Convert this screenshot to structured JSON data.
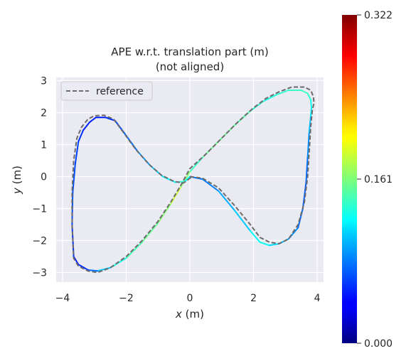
{
  "chart_data": {
    "type": "line",
    "title": "APE w.r.t. translation part (m)",
    "subtitle": "(not aligned)",
    "xlabel_var": "x",
    "xlabel_unit": " (m)",
    "ylabel_var": "y",
    "ylabel_unit": " (m)",
    "xlim": [
      -4.2,
      4.2
    ],
    "ylim": [
      -3.3,
      3.1
    ],
    "xticks": [
      -4,
      -2,
      0,
      2,
      4
    ],
    "xtick_labels": [
      "−4",
      "−2",
      "0",
      "2",
      "4"
    ],
    "yticks": [
      -3,
      -2,
      -1,
      0,
      1,
      2,
      3
    ],
    "ytick_labels": [
      "−3",
      "−2",
      "−1",
      "0",
      "1",
      "2",
      "3"
    ],
    "grid": true,
    "legend": {
      "placement": "top-left",
      "entries": [
        "reference"
      ]
    },
    "colorbar": {
      "colormap": "jet",
      "min": 0.0,
      "max": 0.322,
      "tick_labels": [
        "0.000",
        "0.161",
        "0.322"
      ],
      "tick_values": [
        0.0,
        0.161,
        0.322
      ]
    },
    "series": [
      {
        "name": "reference",
        "style": "dashed",
        "color": "#6b6b6b",
        "x": [
          0,
          0.4,
          0.9,
          1.4,
          1.9,
          2.2,
          2.5,
          2.8,
          3.1,
          3.4,
          3.6,
          3.7,
          3.75,
          3.8,
          3.85,
          3.9,
          3.88,
          3.8,
          3.6,
          3.2,
          2.8,
          2.4,
          2.0,
          1.5,
          1.0,
          0.5,
          0.0,
          -0.3,
          -0.6,
          -1.0,
          -1.5,
          -2.0,
          -2.5,
          -2.9,
          -3.2,
          -3.5,
          -3.65,
          -3.7,
          -3.7,
          -3.65,
          -3.55,
          -3.4,
          -3.2,
          -3.0,
          -2.7,
          -2.4,
          -2.1,
          -1.7,
          -1.3,
          -0.9,
          -0.5,
          -0.2,
          0.05
        ],
        "y": [
          0.0,
          -0.05,
          -0.35,
          -0.9,
          -1.5,
          -1.9,
          -2.05,
          -2.1,
          -1.95,
          -1.5,
          -0.8,
          0.0,
          0.8,
          1.6,
          2.1,
          2.3,
          2.5,
          2.7,
          2.8,
          2.8,
          2.65,
          2.45,
          2.15,
          1.7,
          1.2,
          0.7,
          0.25,
          -0.3,
          -0.8,
          -1.4,
          -2.0,
          -2.5,
          -2.85,
          -3.0,
          -2.95,
          -2.8,
          -2.55,
          -1.5,
          -0.5,
          0.5,
          1.2,
          1.55,
          1.8,
          1.9,
          1.92,
          1.8,
          1.4,
          0.85,
          0.4,
          0.05,
          -0.15,
          -0.2,
          -0.02
        ]
      },
      {
        "name": "",
        "style": "colormapped",
        "x": [
          0,
          0.4,
          0.9,
          1.4,
          1.9,
          2.2,
          2.5,
          2.8,
          3.1,
          3.4,
          3.55,
          3.65,
          3.7,
          3.75,
          3.8,
          3.82,
          3.8,
          3.7,
          3.5,
          3.1,
          2.7,
          2.3,
          1.9,
          1.4,
          0.9,
          0.4,
          0.0,
          -0.3,
          -0.6,
          -1.0,
          -1.5,
          -2.0,
          -2.5,
          -2.9,
          -3.2,
          -3.5,
          -3.65,
          -3.7,
          -3.68,
          -3.6,
          -3.5,
          -3.35,
          -3.15,
          -2.95,
          -2.65,
          -2.35,
          -2.05,
          -1.65,
          -1.25,
          -0.85,
          -0.45,
          -0.15,
          0.0
        ],
        "y": [
          0.0,
          -0.08,
          -0.45,
          -1.05,
          -1.7,
          -2.05,
          -2.15,
          -2.1,
          -1.95,
          -1.6,
          -1.0,
          -0.2,
          0.6,
          1.4,
          1.9,
          2.15,
          2.4,
          2.6,
          2.7,
          2.7,
          2.55,
          2.35,
          2.05,
          1.6,
          1.1,
          0.6,
          0.15,
          -0.35,
          -0.85,
          -1.45,
          -2.05,
          -2.55,
          -2.85,
          -2.95,
          -2.92,
          -2.75,
          -2.5,
          -1.5,
          -0.5,
          0.4,
          1.1,
          1.45,
          1.7,
          1.85,
          1.85,
          1.75,
          1.35,
          0.8,
          0.35,
          0.0,
          -0.18,
          -0.15,
          0.0
        ],
        "error": [
          0.08,
          0.07,
          0.09,
          0.1,
          0.11,
          0.13,
          0.12,
          0.1,
          0.09,
          0.08,
          0.07,
          0.07,
          0.08,
          0.09,
          0.11,
          0.12,
          0.13,
          0.14,
          0.14,
          0.14,
          0.13,
          0.13,
          0.14,
          0.15,
          0.16,
          0.15,
          0.13,
          0.2,
          0.17,
          0.16,
          0.15,
          0.14,
          0.12,
          0.09,
          0.06,
          0.05,
          0.05,
          0.06,
          0.07,
          0.06,
          0.06,
          0.05,
          0.05,
          0.05,
          0.05,
          0.06,
          0.07,
          0.08,
          0.1,
          0.11,
          0.13,
          0.14,
          0.1
        ]
      }
    ]
  }
}
